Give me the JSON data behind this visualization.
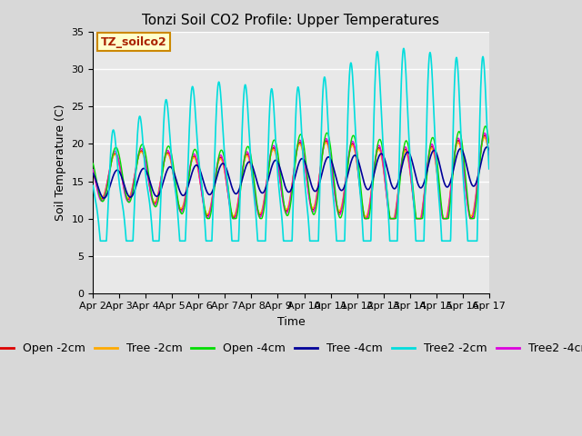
{
  "title": "Tonzi Soil CO2 Profile: Upper Temperatures",
  "ylabel": "Soil Temperature (C)",
  "xlabel": "Time",
  "watermark": "TZ_soilco2",
  "ylim": [
    0,
    35
  ],
  "yticks": [
    0,
    5,
    10,
    15,
    20,
    25,
    30,
    35
  ],
  "x_tick_labels": [
    "Apr 2",
    "Apr 3",
    "Apr 4",
    "Apr 5",
    "Apr 6",
    "Apr 7",
    "Apr 8",
    "Apr 9",
    "Apr 10",
    "Apr 11",
    "Apr 12",
    "Apr 13",
    "Apr 14",
    "Apr 15",
    "Apr 16",
    "Apr 17"
  ],
  "series_colors": {
    "Open -2cm": "#dd0000",
    "Tree -2cm": "#ffaa00",
    "Open -4cm": "#00dd00",
    "Tree -4cm": "#000099",
    "Tree2 -2cm": "#00dddd",
    "Tree2 -4cm": "#dd00dd"
  },
  "plot_bg": "#e8e8e8",
  "grid_color": "#ffffff",
  "title_fontsize": 11,
  "label_fontsize": 9,
  "tick_fontsize": 8,
  "legend_fontsize": 9,
  "watermark_color": "#aa2200",
  "watermark_bg": "#ffffcc",
  "watermark_border": "#cc8800"
}
